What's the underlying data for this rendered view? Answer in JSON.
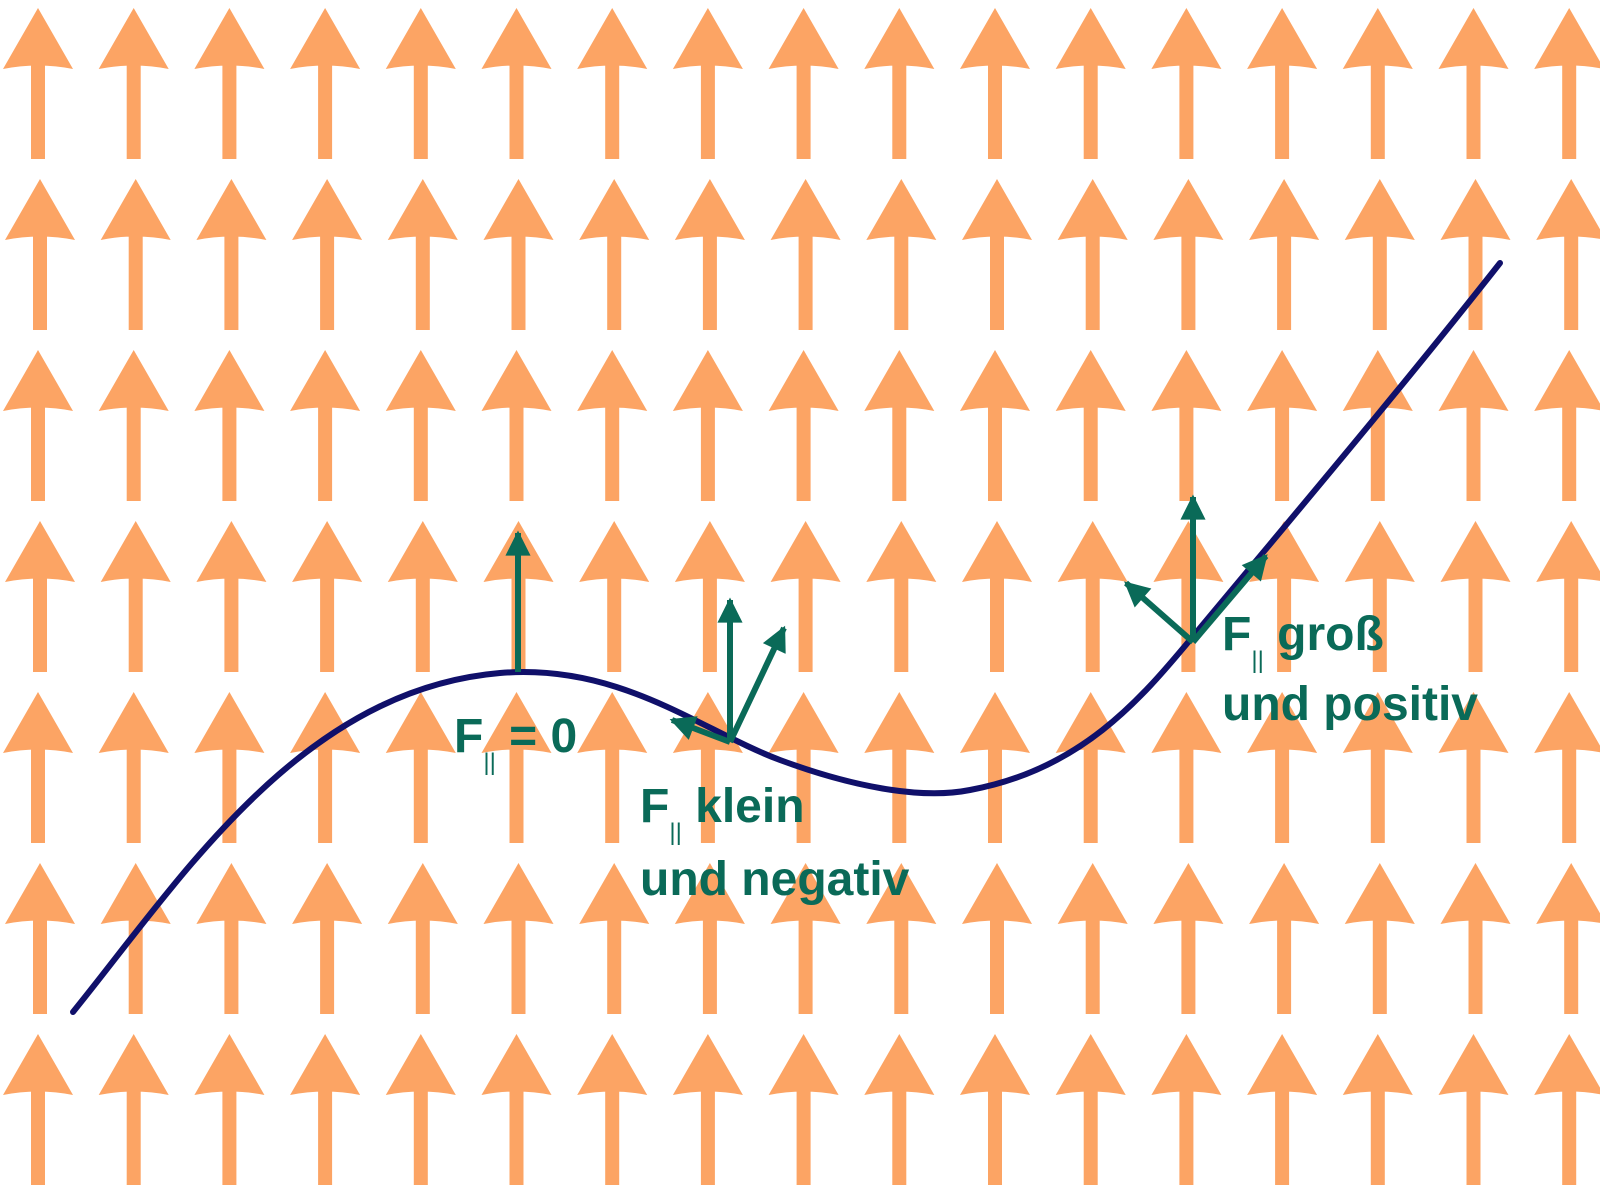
{
  "colors": {
    "field_arrow": "#fca464",
    "curve": "#10106a",
    "force": "#0a6a58"
  },
  "field": {
    "direction": "up",
    "rows": 7,
    "columns": 17
  },
  "labels": {
    "zero": {
      "f": "F",
      "sub": "||",
      "rest": " = 0"
    },
    "small": {
      "f": "F",
      "sub": "||",
      "rest": " klein",
      "line2": "und negativ"
    },
    "large": {
      "f": "F",
      "sub": "||",
      "rest": " groß",
      "line2": "und positiv"
    }
  }
}
